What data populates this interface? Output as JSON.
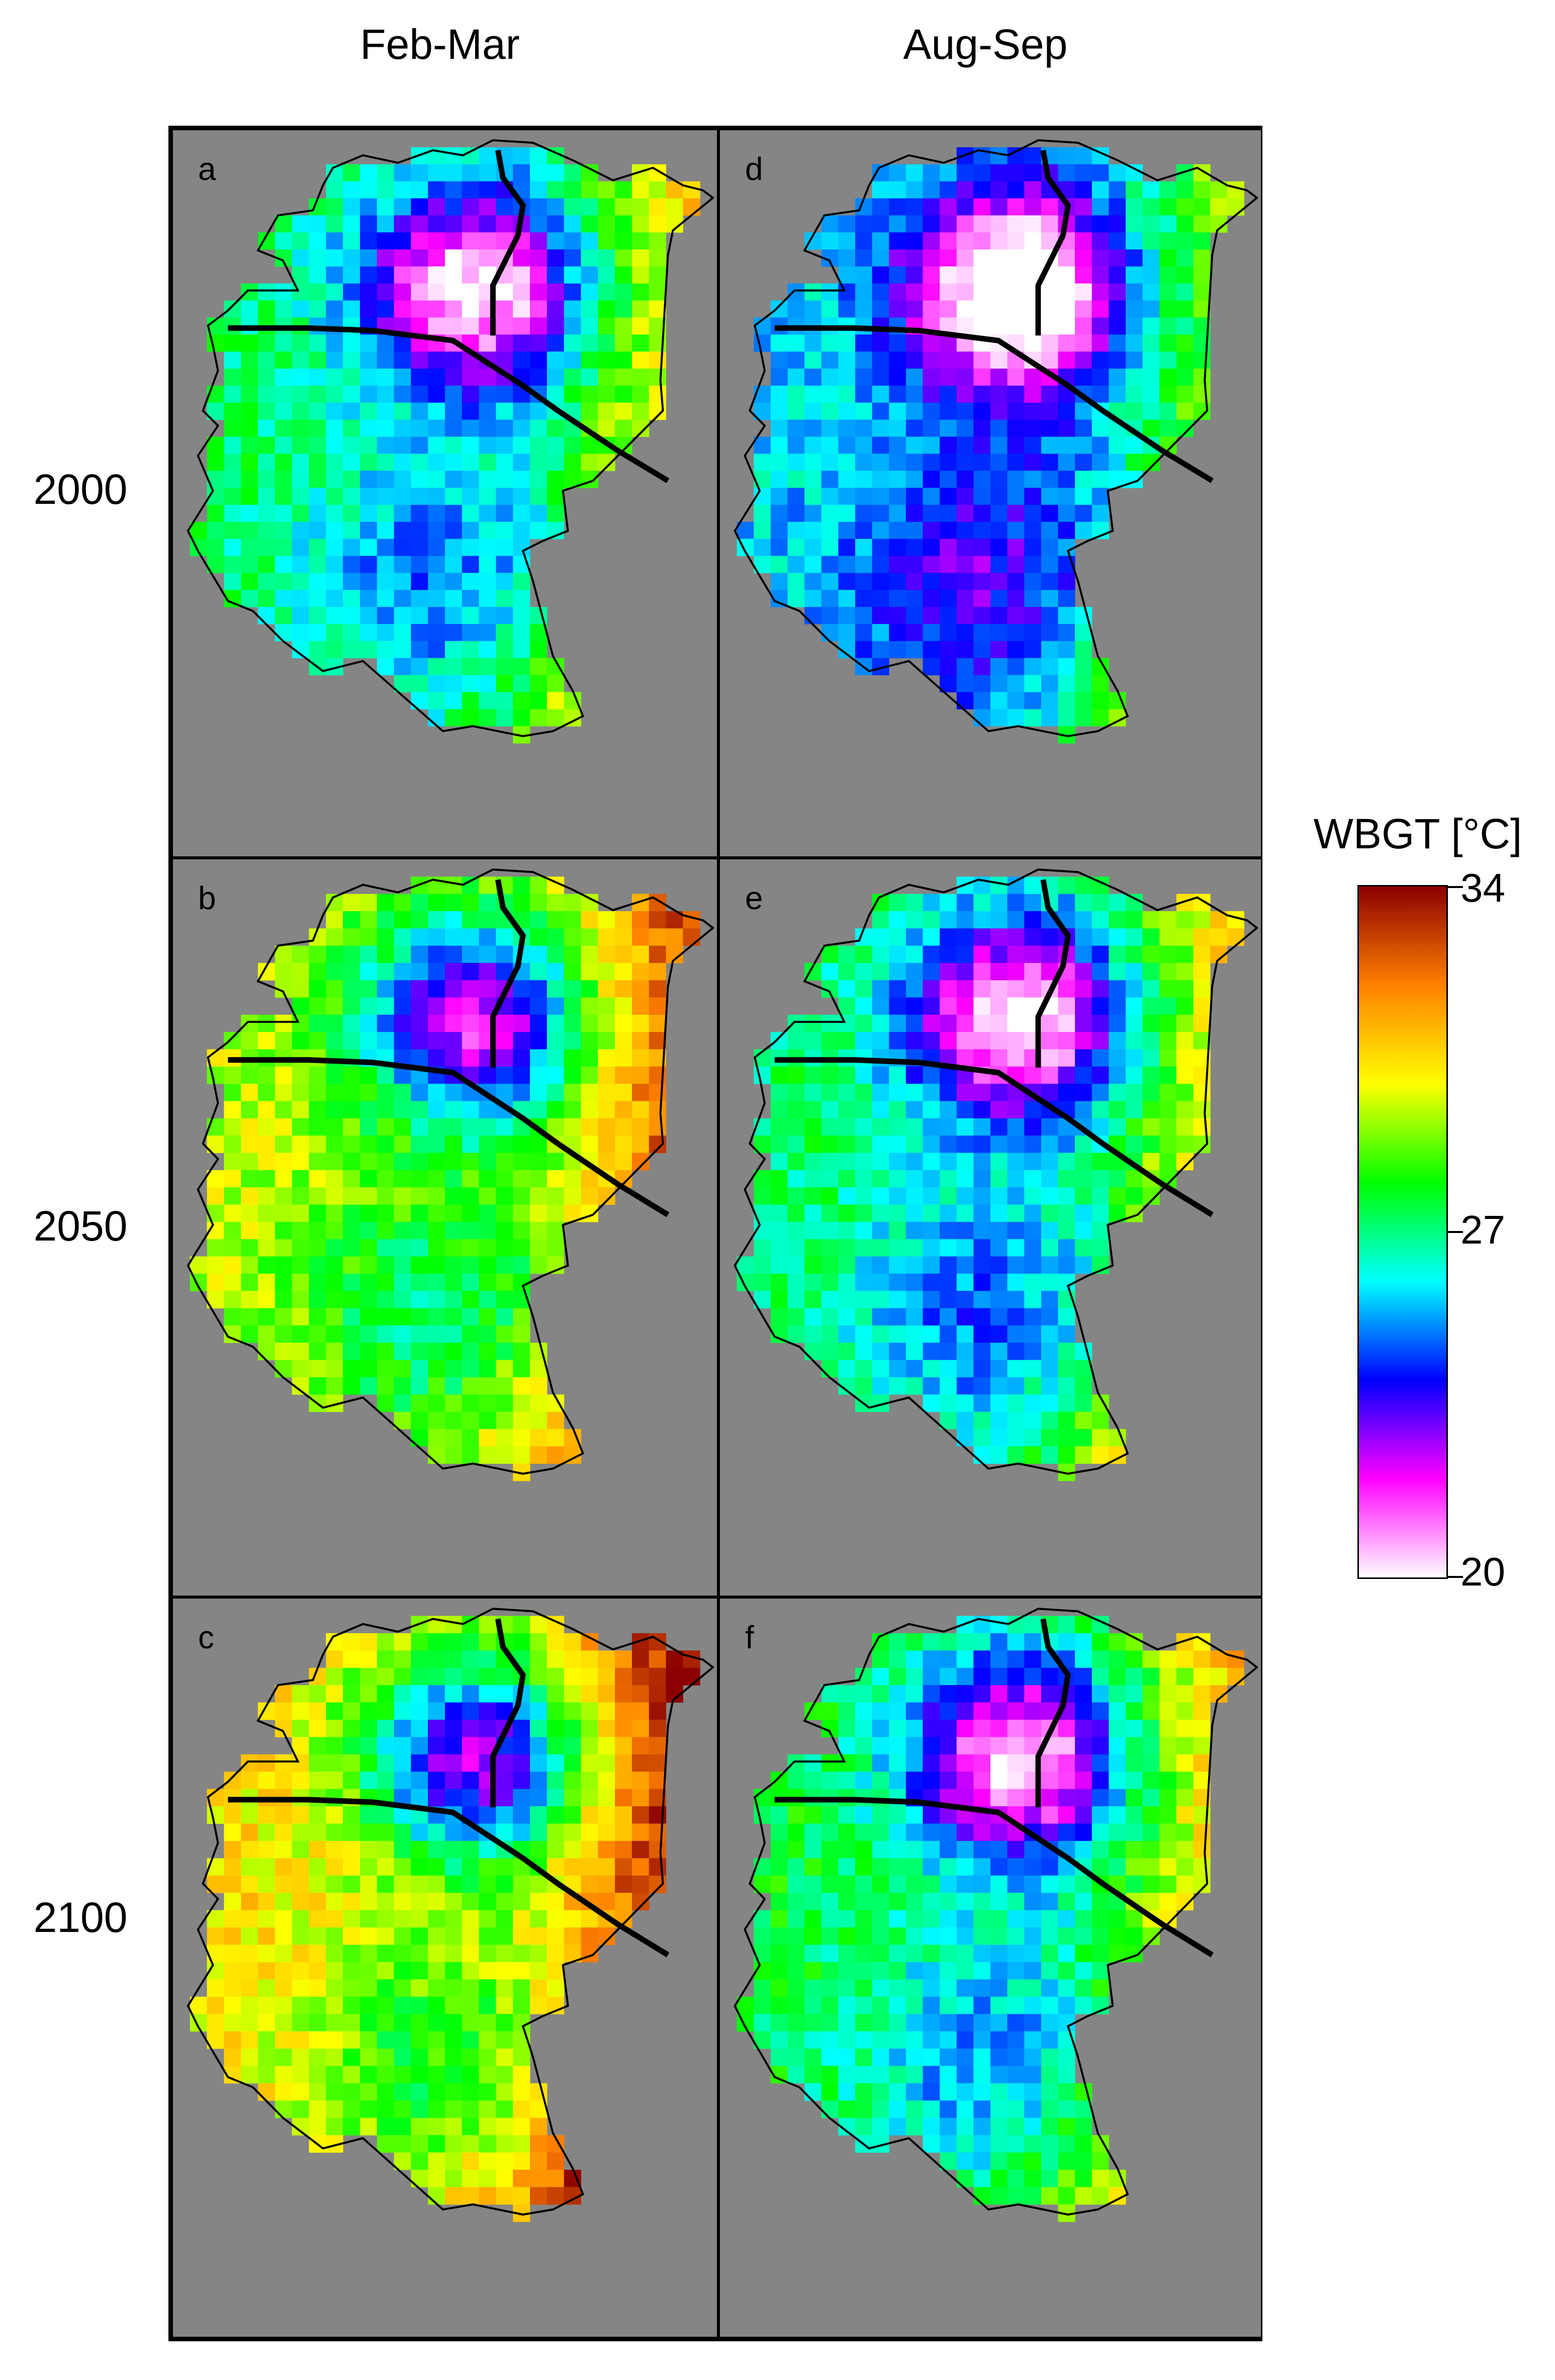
{
  "columns": [
    {
      "label": "Feb-Mar"
    },
    {
      "label": "Aug-Sep"
    }
  ],
  "rows": [
    {
      "label": "2000"
    },
    {
      "label": "2050"
    },
    {
      "label": "2100"
    }
  ],
  "panels": [
    {
      "letter": "a",
      "column": "Feb-Mar",
      "row": "2000",
      "season_offset": 0.0,
      "year_offset": 0.0
    },
    {
      "letter": "b",
      "column": "Feb-Mar",
      "row": "2050",
      "season_offset": 0.0,
      "year_offset": 0.35
    },
    {
      "letter": "c",
      "column": "Feb-Mar",
      "row": "2100",
      "season_offset": 0.0,
      "year_offset": 0.5
    },
    {
      "letter": "d",
      "column": "Aug-Sep",
      "row": "2000",
      "season_offset": -0.2,
      "year_offset": 0.0
    },
    {
      "letter": "e",
      "column": "Aug-Sep",
      "row": "2050",
      "season_offset": -0.2,
      "year_offset": 0.22
    },
    {
      "letter": "f",
      "column": "Aug-Sep",
      "row": "2100",
      "season_offset": -0.2,
      "year_offset": 0.28
    }
  ],
  "colorbar": {
    "title": "WBGT [°C]",
    "min": 20,
    "max": 34,
    "ticks": [
      "34",
      "27",
      "20"
    ],
    "tick_values": [
      34,
      27,
      20
    ],
    "stops": [
      "#ffffff",
      "#ff00ff",
      "#0000ff",
      "#00ffff",
      "#00ff00",
      "#ffff00",
      "#ff8000",
      "#8b0000"
    ]
  },
  "colors": {
    "background": "#858585",
    "border": "#000000"
  }
}
